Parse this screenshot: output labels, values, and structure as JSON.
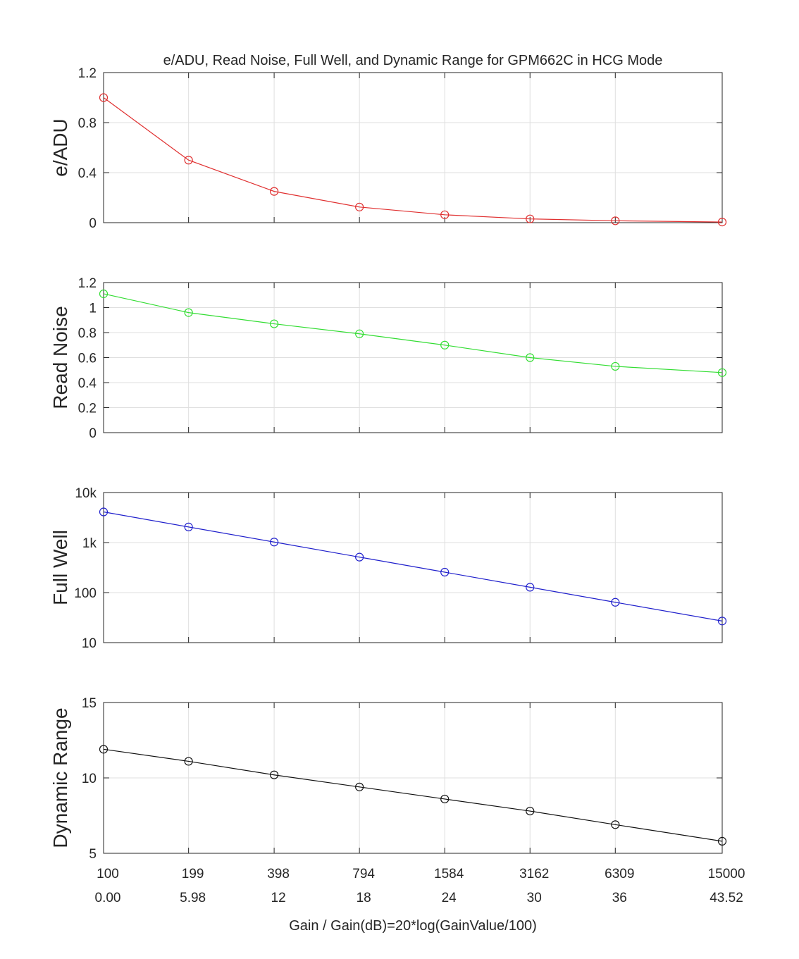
{
  "figure": {
    "title": "e/ADU, Read Noise, Full Well, and Dynamic Range for GPM662C in HCG Mode",
    "xlabel": "Gain / Gain(dB)=20*log(GainValue/100)",
    "gain_tick_labels": [
      "100",
      "199",
      "398",
      "794",
      "1584",
      "3162",
      "6309",
      "15000"
    ],
    "db_tick_labels": [
      "0.00",
      "5.98",
      "12",
      "18",
      "24",
      "30",
      "36",
      "43.52"
    ]
  },
  "chart_data": [
    {
      "type": "line",
      "ylabel": "e/ADU",
      "x": [
        0,
        5.98,
        12,
        18,
        24,
        30,
        36,
        43.52
      ],
      "xlim": [
        0,
        43.52
      ],
      "ylim": [
        0,
        1.2
      ],
      "yscale": "linear",
      "yticks": [
        0,
        0.4,
        0.8,
        1.2
      ],
      "ytick_labels": [
        "0",
        "0.4",
        "0.8",
        "1.2"
      ],
      "grid": true,
      "color": "#e03030",
      "marker": "circle",
      "series": [
        {
          "values": [
            1.0,
            0.5,
            0.25,
            0.125,
            0.063,
            0.03,
            0.015,
            0.005
          ]
        }
      ]
    },
    {
      "type": "line",
      "ylabel": "Read Noise",
      "x": [
        0,
        5.98,
        12,
        18,
        24,
        30,
        36,
        43.52
      ],
      "xlim": [
        0,
        43.52
      ],
      "ylim": [
        0,
        1.2
      ],
      "yscale": "linear",
      "yticks": [
        0,
        0.2,
        0.4,
        0.6,
        0.8,
        1,
        1.2
      ],
      "ytick_labels": [
        "0",
        "0.2",
        "0.4",
        "0.6",
        "0.8",
        "1",
        "1.2"
      ],
      "grid": true,
      "color": "#33dd33",
      "marker": "circle",
      "series": [
        {
          "values": [
            1.11,
            0.96,
            0.87,
            0.79,
            0.7,
            0.6,
            0.53,
            0.48
          ]
        }
      ]
    },
    {
      "type": "line",
      "ylabel": "Full Well",
      "x": [
        0,
        5.98,
        12,
        18,
        24,
        30,
        36,
        43.52
      ],
      "xlim": [
        0,
        43.52
      ],
      "ylim": [
        10,
        10000
      ],
      "yscale": "log",
      "yticks": [
        10,
        100,
        1000,
        10000
      ],
      "ytick_labels": [
        "10",
        "100",
        "1k",
        "10k"
      ],
      "grid": true,
      "color": "#2020cc",
      "marker": "circle",
      "series": [
        {
          "values": [
            4096,
            2048,
            1024,
            512,
            256,
            128,
            64,
            27
          ]
        }
      ]
    },
    {
      "type": "line",
      "ylabel": "Dynamic Range",
      "x": [
        0,
        5.98,
        12,
        18,
        24,
        30,
        36,
        43.52
      ],
      "xlim": [
        0,
        43.52
      ],
      "ylim": [
        5,
        15
      ],
      "yscale": "linear",
      "yticks": [
        5,
        10,
        15
      ],
      "ytick_labels": [
        "5",
        "10",
        "15"
      ],
      "grid": true,
      "color": "#111111",
      "marker": "circle",
      "series": [
        {
          "values": [
            11.9,
            11.1,
            10.2,
            9.4,
            8.6,
            7.8,
            6.9,
            5.8
          ]
        }
      ]
    }
  ]
}
